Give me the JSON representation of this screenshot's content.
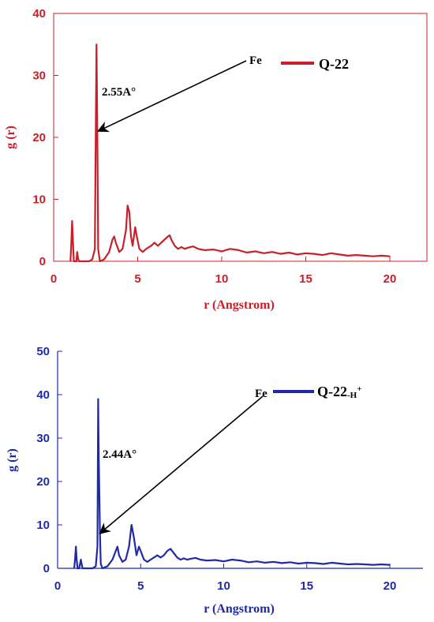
{
  "chart_data": [
    {
      "type": "line",
      "color": "#c8202a",
      "xlabel": "r (Angstrom)",
      "ylabel": "g (r)",
      "xlim": [
        0,
        20
      ],
      "ylim": [
        0,
        40
      ],
      "xticks": [
        0,
        5,
        10,
        15,
        20
      ],
      "yticks": [
        0,
        10,
        20,
        30,
        40
      ],
      "grid": false,
      "legend_position": "top-right",
      "series": [
        {
          "name": "Q-22",
          "x": [
            1.0,
            1.05,
            1.1,
            1.15,
            1.2,
            1.35,
            1.4,
            1.45,
            1.5,
            1.7,
            1.9,
            2.1,
            2.3,
            2.45,
            2.5,
            2.55,
            2.6,
            2.65,
            2.75,
            3.0,
            3.3,
            3.5,
            3.6,
            3.7,
            3.9,
            4.1,
            4.3,
            4.4,
            4.5,
            4.6,
            4.7,
            4.85,
            4.95,
            5.1,
            5.3,
            5.5,
            5.8,
            6.0,
            6.2,
            6.4,
            6.6,
            6.8,
            6.9,
            7.0,
            7.2,
            7.4,
            7.6,
            7.8,
            8.0,
            8.3,
            8.6,
            9.0,
            9.5,
            10.0,
            10.5,
            11.0,
            11.5,
            12.0,
            12.5,
            13.0,
            13.5,
            14.0,
            14.5,
            15.0,
            15.5,
            16.0,
            16.5,
            17.0,
            17.5,
            18.0,
            18.5,
            19.0,
            19.5,
            20.0
          ],
          "y": [
            0,
            3,
            6.5,
            3,
            0,
            0,
            1.5,
            0.5,
            0,
            0,
            0,
            0,
            0.3,
            2,
            20,
            35,
            20,
            2,
            0,
            0.3,
            1.5,
            3.5,
            4,
            3,
            1.5,
            2,
            5,
            9,
            8,
            4,
            2.5,
            5.5,
            4,
            2,
            1.5,
            2,
            2.5,
            3,
            2.5,
            3,
            3.5,
            4,
            4.2,
            3.5,
            2.5,
            2,
            2.3,
            2,
            2.2,
            2.4,
            2,
            1.8,
            1.9,
            1.6,
            2,
            1.8,
            1.4,
            1.6,
            1.3,
            1.5,
            1.2,
            1.4,
            1.1,
            1.3,
            1.2,
            1.0,
            1.3,
            1.1,
            0.9,
            1.0,
            0.9,
            0.8,
            0.9,
            0.8
          ]
        }
      ],
      "annotations": [
        {
          "text": "Fe",
          "target_x": 2.55,
          "target_y": 21
        },
        {
          "text": "2.55A°"
        }
      ]
    },
    {
      "type": "line",
      "color": "#1f2aa6",
      "xlabel": "r (Angstrom)",
      "ylabel": "g (r)",
      "xlim": [
        0,
        22
      ],
      "ylim": [
        0,
        50
      ],
      "xticks": [
        0,
        5,
        10,
        15,
        20
      ],
      "yticks": [
        0,
        10,
        20,
        30,
        40,
        50
      ],
      "grid": false,
      "legend_position": "top-right",
      "series": [
        {
          "name": "Q-22",
          "name_suffix": "-H",
          "name_sup": "+",
          "x": [
            1.0,
            1.05,
            1.1,
            1.15,
            1.2,
            1.3,
            1.35,
            1.4,
            1.45,
            1.5,
            1.7,
            1.9,
            2.1,
            2.3,
            2.4,
            2.44,
            2.48,
            2.55,
            2.6,
            2.7,
            3.0,
            3.3,
            3.5,
            3.6,
            3.7,
            3.9,
            4.1,
            4.3,
            4.45,
            4.6,
            4.75,
            4.9,
            5.0,
            5.2,
            5.4,
            5.6,
            5.8,
            6.0,
            6.2,
            6.4,
            6.6,
            6.8,
            7.0,
            7.2,
            7.4,
            7.6,
            7.8,
            8.0,
            8.3,
            8.6,
            9.0,
            9.5,
            10.0,
            10.5,
            11.0,
            11.5,
            12.0,
            12.5,
            13.0,
            13.5,
            14.0,
            14.5,
            15.0,
            15.5,
            16.0,
            16.5,
            17.0,
            17.5,
            18.0,
            18.5,
            19.0,
            19.5,
            20.0
          ],
          "y": [
            0,
            2,
            5,
            2,
            0,
            0,
            1,
            2,
            1,
            0,
            0,
            0,
            0,
            0.5,
            5,
            39,
            25,
            8,
            1,
            0,
            0.5,
            2,
            4,
            5,
            3,
            1.5,
            2,
            5,
            10,
            7,
            3,
            5,
            4,
            2,
            1.5,
            2,
            2.5,
            3,
            2.5,
            3,
            4,
            4.5,
            3.5,
            2.5,
            2,
            2.3,
            2,
            2.2,
            2.4,
            2,
            1.8,
            1.9,
            1.6,
            2,
            1.8,
            1.4,
            1.6,
            1.3,
            1.5,
            1.2,
            1.4,
            1.1,
            1.3,
            1.2,
            1.0,
            1.3,
            1.1,
            0.9,
            1.0,
            0.9,
            0.8,
            0.9,
            0.8
          ]
        }
      ],
      "annotations": [
        {
          "text": "Fe",
          "target_x": 2.44,
          "target_y": 8
        },
        {
          "text": "2.44A°"
        }
      ]
    }
  ]
}
